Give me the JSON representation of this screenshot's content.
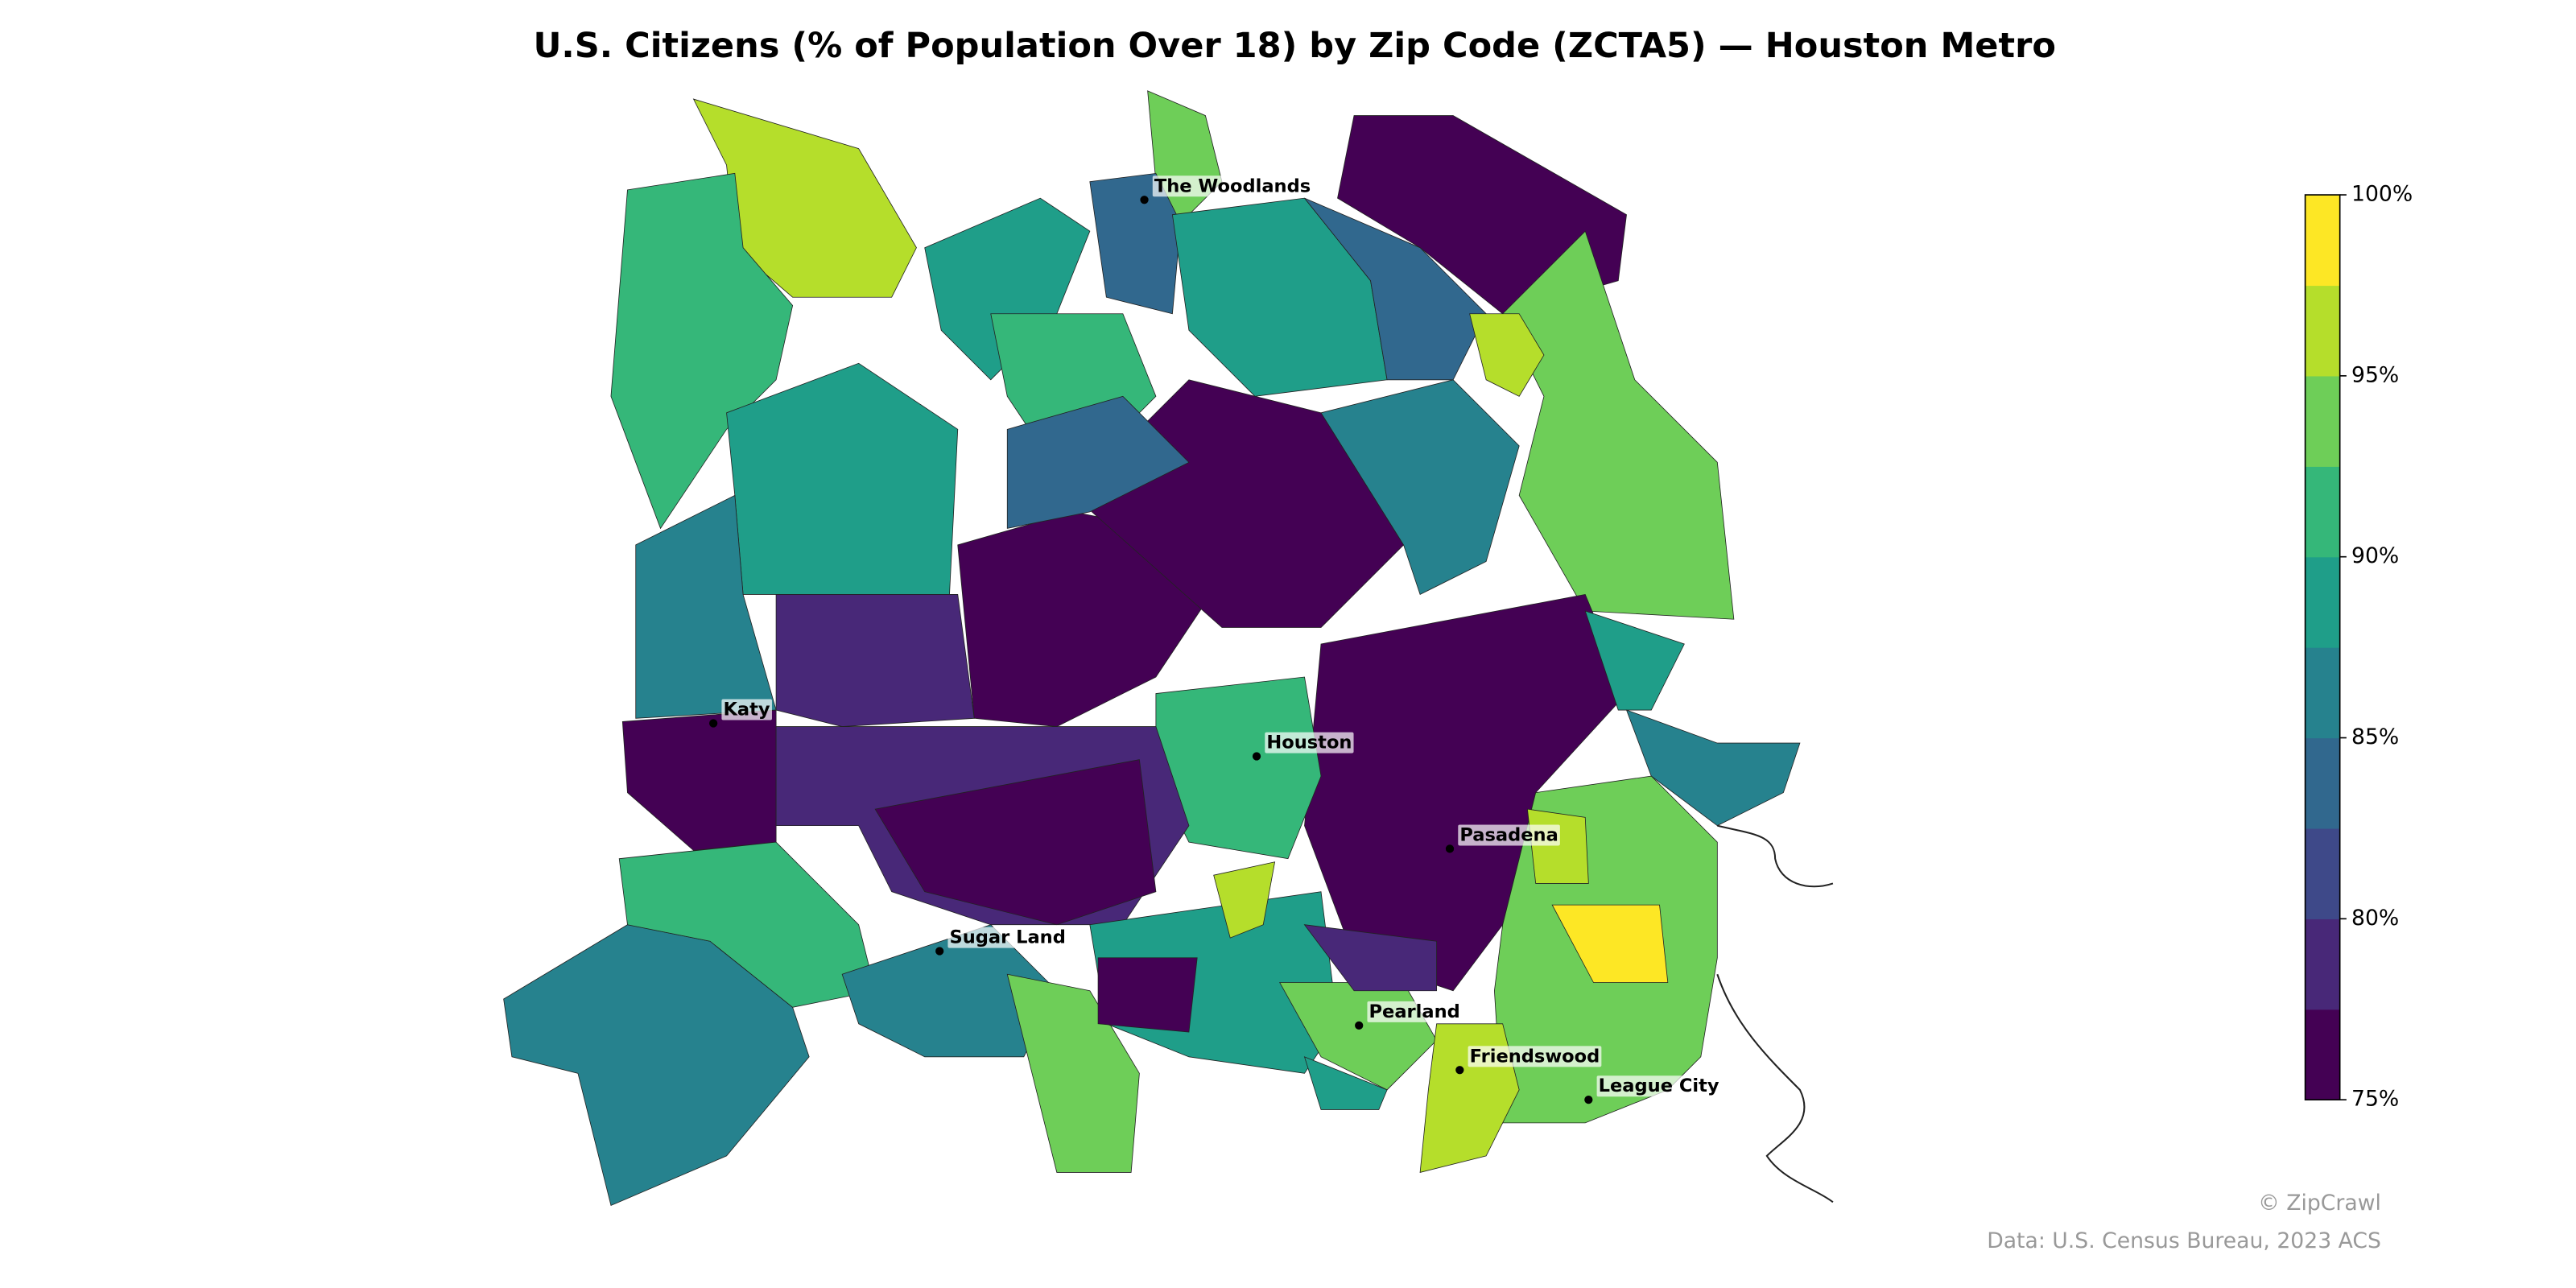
{
  "chart_data": {
    "type": "choropleth",
    "title": "U.S. Citizens (% of Population Over 18) by Zip Code (ZCTA5) — Houston Metro",
    "values": [
      96,
      91,
      88,
      93,
      84,
      89,
      76,
      84,
      93,
      96,
      91,
      88,
      86,
      79,
      76,
      77,
      84,
      86,
      76,
      89,
      86,
      93,
      99,
      96,
      90,
      76,
      78,
      76,
      86,
      91,
      85,
      93,
      88,
      93,
      96,
      76,
      89,
      79,
      96
    ],
    "clim": [
      75,
      100
    ],
    "colors": [
      "#440154",
      "#482878",
      "#3e4989",
      "#31688e",
      "#26828e",
      "#1f9e89",
      "#35b779",
      "#6ece58",
      "#b5de2b",
      "#fde725"
    ],
    "cticks": [
      {
        "value": 75,
        "label": "75%"
      },
      {
        "value": 80,
        "label": "80%"
      },
      {
        "value": 85,
        "label": "85%"
      },
      {
        "value": 90,
        "label": "90%"
      },
      {
        "value": 95,
        "label": "95%"
      },
      {
        "value": 100,
        "label": "100%"
      }
    ],
    "cities": [
      "The Woodlands",
      "Katy",
      "Houston",
      "Pasadena",
      "Sugar Land",
      "Pearland",
      "Friendswood",
      "League City"
    ],
    "credit": "© ZipCrawl",
    "source": "Data: U.S. Census Bureau, 2023 ACS"
  }
}
